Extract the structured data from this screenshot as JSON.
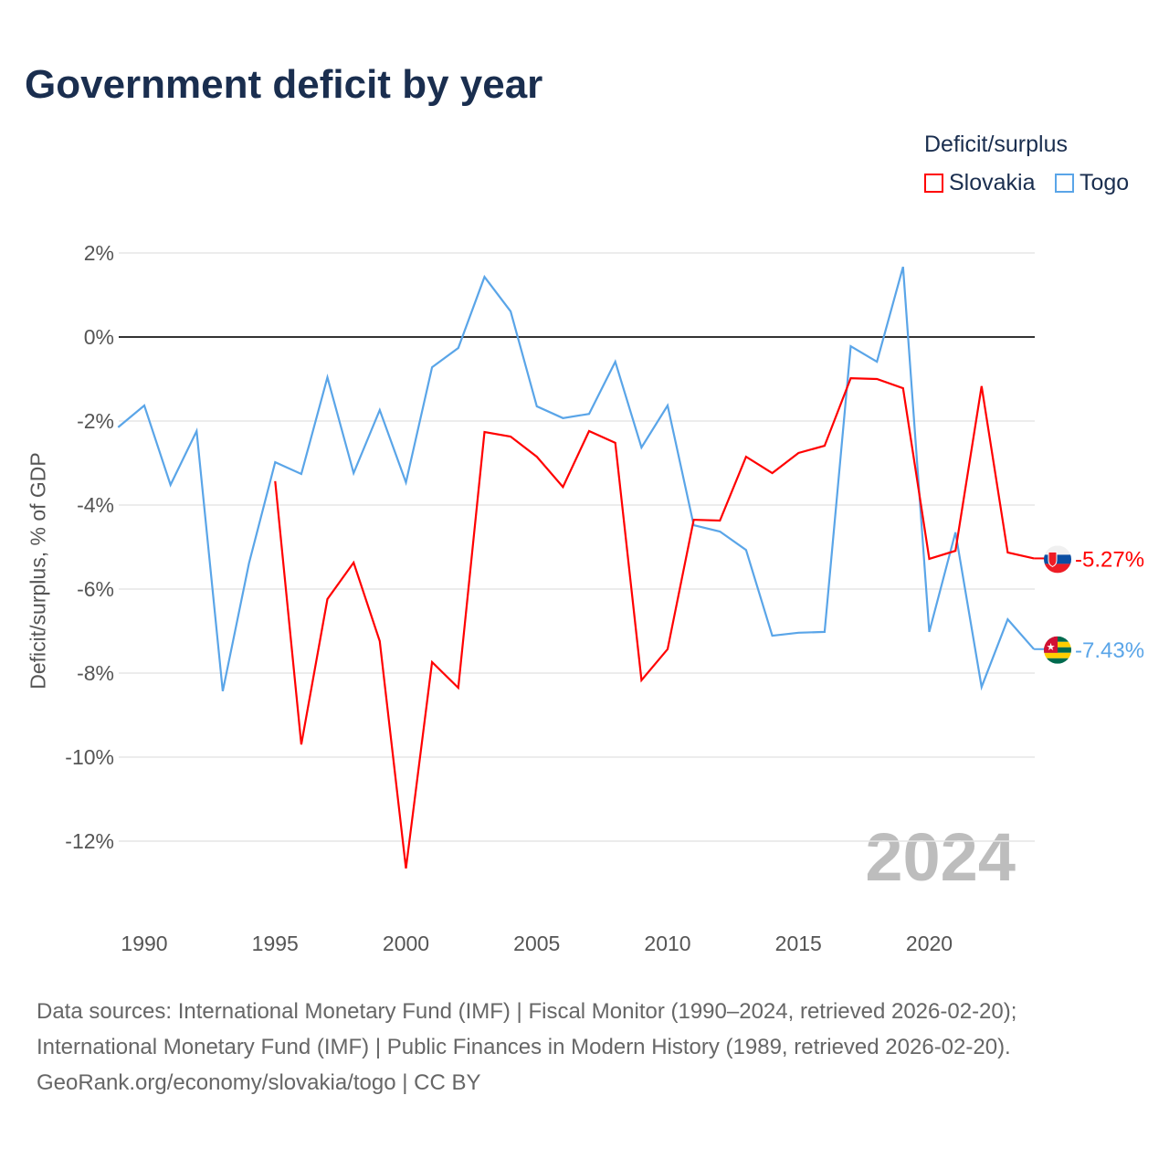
{
  "title": "Government deficit by year",
  "chart_data": {
    "type": "line",
    "title": "Government deficit by year",
    "xlabel": "",
    "ylabel": "Deficit/surplus, % of GDP",
    "legend_title": "Deficit/surplus",
    "legend_position": "top-right",
    "ylim": [
      -14,
      2.5
    ],
    "xlim": [
      1989,
      2024
    ],
    "y_ticks": [
      2,
      0,
      -2,
      -4,
      -6,
      -8,
      -10,
      -12
    ],
    "y_tick_labels": [
      "2%",
      "0%",
      "-2%",
      "-4%",
      "-6%",
      "-8%",
      "-10%",
      "-12%"
    ],
    "x_ticks": [
      1990,
      1995,
      2000,
      2005,
      2010,
      2015,
      2020
    ],
    "x_tick_labels": [
      "1990",
      "1995",
      "2000",
      "2005",
      "2010",
      "2015",
      "2020"
    ],
    "grid": true,
    "year_watermark": "2024",
    "series": [
      {
        "name": "Slovakia",
        "color": "#ff0000",
        "end_label": "-5.27%",
        "flag": "slovakia-flag",
        "x": [
          1995,
          1996,
          1997,
          1998,
          1999,
          2000,
          2001,
          2002,
          2003,
          2004,
          2005,
          2006,
          2007,
          2008,
          2009,
          2010,
          2011,
          2012,
          2013,
          2014,
          2015,
          2016,
          2017,
          2018,
          2019,
          2020,
          2021,
          2022,
          2023,
          2024
        ],
        "values": [
          -3.43,
          -9.7,
          -6.24,
          -5.37,
          -7.24,
          -12.65,
          -7.74,
          -8.35,
          -2.26,
          -2.37,
          -2.85,
          -3.57,
          -2.24,
          -2.52,
          -8.17,
          -7.43,
          -4.35,
          -4.37,
          -2.85,
          -3.24,
          -2.76,
          -2.59,
          -0.98,
          -1.0,
          -1.22,
          -5.28,
          -5.09,
          -1.17,
          -5.13,
          -5.27
        ]
      },
      {
        "name": "Togo",
        "color": "#5aa5e8",
        "end_label": "-7.43%",
        "flag": "togo-flag",
        "x": [
          1989,
          1990,
          1991,
          1992,
          1993,
          1994,
          1995,
          1996,
          1997,
          1998,
          1999,
          2000,
          2001,
          2002,
          2003,
          2004,
          2005,
          2006,
          2007,
          2008,
          2009,
          2010,
          2011,
          2012,
          2013,
          2014,
          2015,
          2016,
          2017,
          2018,
          2019,
          2020,
          2021,
          2022,
          2023,
          2024
        ],
        "values": [
          -2.15,
          -1.63,
          -3.52,
          -2.24,
          -8.43,
          -5.39,
          -2.98,
          -3.26,
          -0.96,
          -3.24,
          -1.74,
          -3.46,
          -0.72,
          -0.26,
          1.43,
          0.61,
          -1.65,
          -1.93,
          -1.83,
          -0.59,
          -2.63,
          -1.63,
          -4.48,
          -4.63,
          -5.07,
          -7.11,
          -7.04,
          -7.02,
          -0.22,
          -0.59,
          1.67,
          -7.02,
          -4.65,
          -8.33,
          -6.72,
          -7.43
        ]
      }
    ]
  },
  "footer": {
    "line1": "Data sources: International Monetary Fund (IMF) | Fiscal Monitor (1990–2024, retrieved 2026-02-20);",
    "line2": "International Monetary Fund (IMF) | Public Finances in Modern History (1989, retrieved 2026-02-20).",
    "line3": "GeoRank.org/economy/slovakia/togo | CC BY"
  }
}
